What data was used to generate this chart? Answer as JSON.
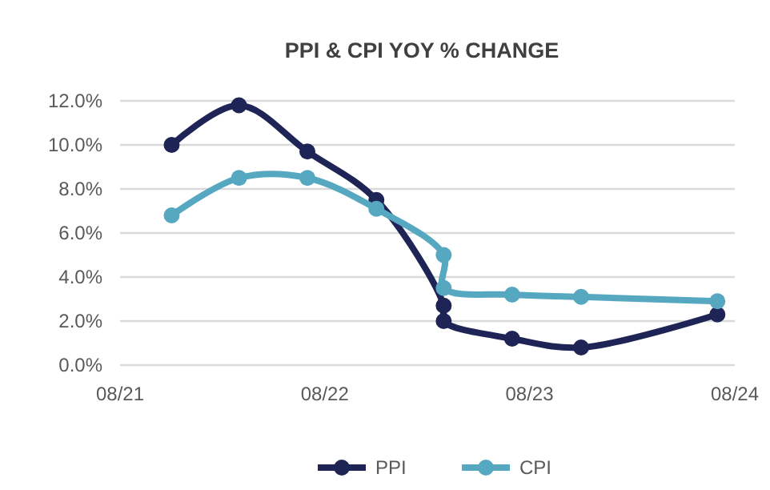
{
  "chart_data": {
    "type": "line",
    "title": "PPI & CPI YOY % CHANGE",
    "series": [
      {
        "name": "PPI",
        "color": "#1f2456",
        "x": [
          "2021-11",
          "2022-03",
          "2022-07",
          "2022-11",
          "2023-03",
          "2023-03",
          "2023-07",
          "2023-11",
          "2024-07"
        ],
        "values": [
          10.0,
          11.8,
          9.7,
          7.5,
          2.7,
          2.0,
          1.2,
          0.8,
          2.3
        ]
      },
      {
        "name": "CPI",
        "color": "#56a8c0",
        "x": [
          "2021-11",
          "2022-03",
          "2022-07",
          "2022-11",
          "2023-03",
          "2023-03",
          "2023-07",
          "2023-11",
          "2024-07"
        ],
        "values": [
          6.8,
          8.5,
          8.5,
          7.1,
          5.0,
          3.5,
          3.2,
          3.1,
          2.9
        ]
      }
    ],
    "xlim": [
      "2021-08",
      "2024-08"
    ],
    "xticks": [
      {
        "value": "2021-08",
        "label": "08/21"
      },
      {
        "value": "2022-08",
        "label": "08/22"
      },
      {
        "value": "2023-08",
        "label": "08/23"
      },
      {
        "value": "2024-08",
        "label": "08/24"
      }
    ],
    "ylim": [
      0,
      12
    ],
    "yticks": [
      {
        "value": 0,
        "label": "0.0%"
      },
      {
        "value": 2,
        "label": "2.0%"
      },
      {
        "value": 4,
        "label": "4.0%"
      },
      {
        "value": 6,
        "label": "6.0%"
      },
      {
        "value": 8,
        "label": "8.0%"
      },
      {
        "value": 10,
        "label": "10.0%"
      },
      {
        "value": 12,
        "label": "12.0%"
      }
    ],
    "grid": "y",
    "legend": "bottom",
    "marker": "circle",
    "line_style": "solid"
  }
}
